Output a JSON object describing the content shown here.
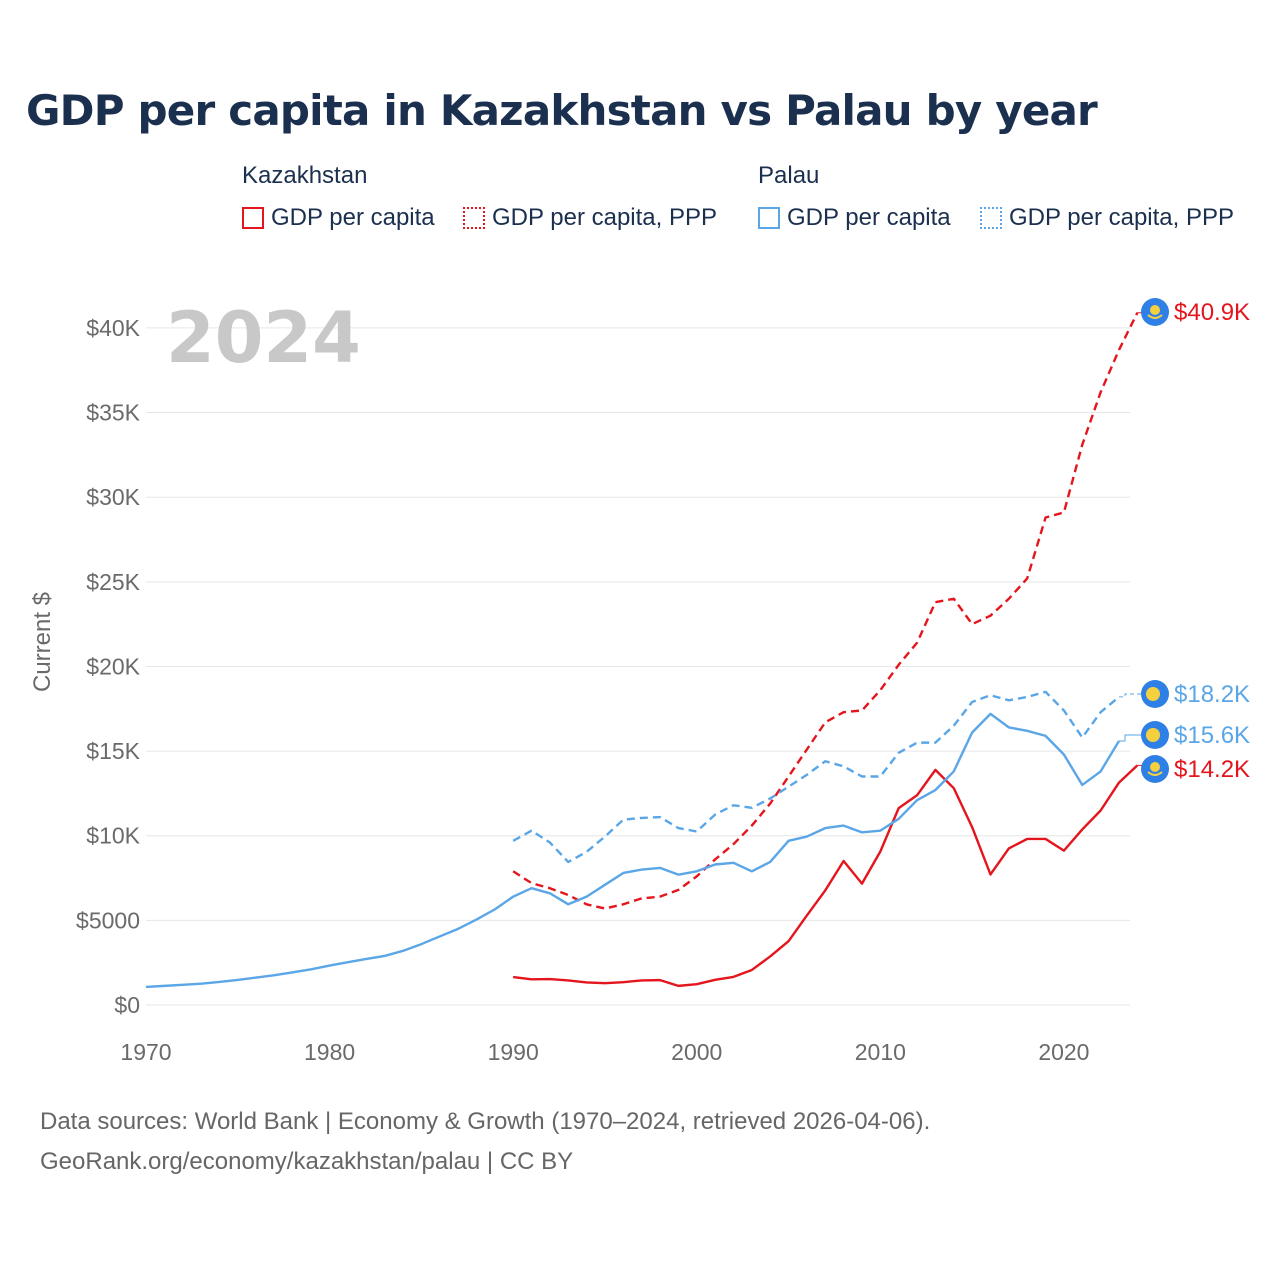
{
  "title": "GDP per capita in Kazakhstan vs Palau by year",
  "legend": {
    "groups": [
      {
        "country": "Kazakhstan",
        "items": [
          "GDP per capita",
          "GDP per capita, PPP"
        ]
      },
      {
        "country": "Palau",
        "items": [
          "GDP per capita",
          "GDP per capita, PPP"
        ]
      }
    ]
  },
  "footer": {
    "source": "Data sources: World Bank | Economy & Growth (1970–2024, retrieved 2026-04-06).",
    "credit": "GeoRank.org/economy/kazakhstan/palau | CC BY"
  },
  "colors": {
    "kazakhstan": "#e4151c",
    "palau": "#5aa6e6"
  },
  "chart_data": {
    "type": "line",
    "title": "GDP per capita in Kazakhstan vs Palau by year",
    "year_label": "2024",
    "ylabel": "Current $",
    "xlabel": "",
    "xlim": [
      1970,
      2024
    ],
    "ylim": [
      0,
      42000
    ],
    "x_ticks": [
      1970,
      1980,
      1990,
      2000,
      2010,
      2020
    ],
    "y_ticks": [
      {
        "value": 0,
        "label": "$0"
      },
      {
        "value": 5000,
        "label": "$5000"
      },
      {
        "value": 10000,
        "label": "$10K"
      },
      {
        "value": 15000,
        "label": "$15K"
      },
      {
        "value": 20000,
        "label": "$20K"
      },
      {
        "value": 25000,
        "label": "$25K"
      },
      {
        "value": 30000,
        "label": "$30K"
      },
      {
        "value": 35000,
        "label": "$35K"
      },
      {
        "value": 40000,
        "label": "$40K"
      }
    ],
    "series": [
      {
        "name": "Kazakhstan GDP per capita",
        "country": "kazakhstan",
        "style": "solid",
        "end_label": "$14.2K",
        "x": [
          1990,
          1991,
          1992,
          1993,
          1994,
          1995,
          1996,
          1997,
          1998,
          1999,
          2000,
          2001,
          2002,
          2003,
          2004,
          2005,
          2006,
          2007,
          2008,
          2009,
          2010,
          2011,
          2012,
          2013,
          2014,
          2015,
          2016,
          2017,
          2018,
          2019,
          2020,
          2021,
          2022,
          2023,
          2024
        ],
        "values": [
          1650,
          1520,
          1530,
          1450,
          1330,
          1290,
          1350,
          1450,
          1470,
          1130,
          1230,
          1490,
          1660,
          2070,
          2870,
          3770,
          5290,
          6770,
          8510,
          7170,
          9070,
          11630,
          12390,
          13890,
          12810,
          10510,
          7710,
          9250,
          9810,
          9810,
          9120,
          10370,
          11490,
          13140,
          14160
        ]
      },
      {
        "name": "Kazakhstan GDP per capita, PPP",
        "country": "kazakhstan",
        "style": "dashed",
        "end_label": "$40.9K",
        "x": [
          1990,
          1991,
          1992,
          1993,
          1994,
          1995,
          1996,
          1997,
          1998,
          1999,
          2000,
          2001,
          2002,
          2003,
          2004,
          2005,
          2006,
          2007,
          2008,
          2009,
          2010,
          2011,
          2012,
          2013,
          2014,
          2015,
          2016,
          2017,
          2018,
          2019,
          2020,
          2021,
          2022,
          2023,
          2024
        ],
        "values": [
          7900,
          7200,
          6900,
          6500,
          5950,
          5700,
          5950,
          6300,
          6400,
          6800,
          7600,
          8600,
          9500,
          10600,
          11900,
          13500,
          15100,
          16700,
          17300,
          17400,
          18600,
          20100,
          21400,
          23800,
          24000,
          22500,
          23000,
          24000,
          25200,
          28800,
          29100,
          33100,
          36200,
          38700,
          40900
        ]
      },
      {
        "name": "Palau GDP per capita",
        "country": "palau",
        "style": "solid",
        "end_label": "$15.6K",
        "x": [
          1970,
          1971,
          1972,
          1973,
          1974,
          1975,
          1976,
          1977,
          1978,
          1979,
          1980,
          1981,
          1982,
          1983,
          1984,
          1985,
          1986,
          1987,
          1988,
          1989,
          1990,
          1991,
          1992,
          1993,
          1994,
          1995,
          1996,
          1997,
          1998,
          1999,
          2000,
          2001,
          2002,
          2003,
          2004,
          2005,
          2006,
          2007,
          2008,
          2009,
          2010,
          2011,
          2012,
          2013,
          2014,
          2015,
          2016,
          2017,
          2018,
          2019,
          2020,
          2021,
          2022,
          2023
        ],
        "values": [
          1070,
          1130,
          1190,
          1260,
          1360,
          1480,
          1620,
          1760,
          1930,
          2110,
          2330,
          2530,
          2720,
          2900,
          3200,
          3600,
          4050,
          4500,
          5050,
          5650,
          6400,
          6900,
          6600,
          5950,
          6400,
          7100,
          7800,
          8000,
          8100,
          7700,
          7900,
          8300,
          8400,
          7900,
          8450,
          9700,
          9950,
          10450,
          10600,
          10200,
          10300,
          11000,
          12100,
          12700,
          13800,
          16100,
          17200,
          16400,
          16200,
          15900,
          14800,
          13000,
          13800,
          15600
        ]
      },
      {
        "name": "Palau GDP per capita, PPP",
        "country": "palau",
        "style": "dashed",
        "end_label": "$18.2K",
        "x": [
          1990,
          1991,
          1992,
          1993,
          1994,
          1995,
          1996,
          1997,
          1998,
          1999,
          2000,
          2001,
          2002,
          2003,
          2004,
          2005,
          2006,
          2007,
          2008,
          2009,
          2010,
          2011,
          2012,
          2013,
          2014,
          2015,
          2016,
          2017,
          2018,
          2019,
          2020,
          2021,
          2022,
          2023
        ],
        "values": [
          9700,
          10300,
          9600,
          8450,
          9050,
          9950,
          10950,
          11050,
          11100,
          10450,
          10250,
          11250,
          11800,
          11650,
          12200,
          12900,
          13600,
          14400,
          14100,
          13500,
          13500,
          14900,
          15500,
          15500,
          16500,
          17900,
          18300,
          18000,
          18200,
          18500,
          17400,
          15800,
          17300,
          18200
        ]
      }
    ]
  }
}
